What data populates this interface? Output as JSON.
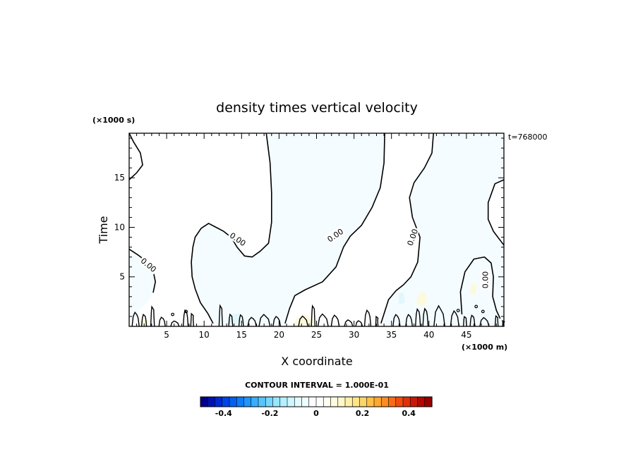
{
  "chart_data": {
    "type": "contour",
    "title": "density times vertical velocity",
    "xlabel": "X coordinate",
    "ylabel": "Time",
    "x_unit": "(×1000 m)",
    "y_unit": "(×1000 s)",
    "annotation": "t=768000",
    "xlim": [
      0,
      50
    ],
    "ylim": [
      0,
      19.5
    ],
    "x_ticks": [
      5,
      10,
      15,
      20,
      25,
      30,
      35,
      40,
      45
    ],
    "y_ticks": [
      5,
      10,
      15
    ],
    "contour_labels": [
      {
        "text": "0.00",
        "x": 2.6,
        "y": 6.2
      },
      {
        "text": "0.00",
        "x": 14.5,
        "y": 8.8
      },
      {
        "text": "0.00",
        "x": 27.5,
        "y": 9.2
      },
      {
        "text": "0.00",
        "x": 37.8,
        "y": 9.0
      },
      {
        "text": "0.00",
        "x": 47.5,
        "y": 4.7
      }
    ],
    "zero_contours": [
      {
        "name": "contour-left-top",
        "points": [
          [
            0,
            14.8
          ],
          [
            1,
            15.5
          ],
          [
            1.8,
            16.3
          ],
          [
            1.5,
            17.5
          ],
          [
            0.6,
            18.6
          ],
          [
            0,
            19.5
          ]
        ]
      },
      {
        "name": "contour-left-mid",
        "points": [
          [
            0,
            7.8
          ],
          [
            1.2,
            7.2
          ],
          [
            2.4,
            6.5
          ],
          [
            3.2,
            5.6
          ],
          [
            3.5,
            4.5
          ],
          [
            3.2,
            3.4
          ]
        ]
      },
      {
        "name": "contour-center-a",
        "points": [
          [
            11.2,
            0.3
          ],
          [
            10.5,
            1.3
          ],
          [
            9.5,
            2.4
          ],
          [
            8.8,
            3.8
          ],
          [
            8.4,
            5.0
          ],
          [
            8.3,
            6.5
          ],
          [
            8.5,
            8.0
          ],
          [
            8.8,
            9.0
          ],
          [
            9.6,
            9.9
          ],
          [
            10.6,
            10.4
          ],
          [
            11.6,
            10.0
          ],
          [
            12.6,
            9.6
          ],
          [
            13.6,
            9.0
          ],
          [
            14.4,
            8.0
          ],
          [
            15.4,
            7.1
          ],
          [
            16.4,
            7.0
          ],
          [
            17.5,
            7.6
          ],
          [
            18.6,
            8.4
          ],
          [
            19.0,
            10.5
          ],
          [
            19.0,
            13.5
          ],
          [
            18.8,
            16.5
          ],
          [
            18.3,
            19.5
          ]
        ]
      },
      {
        "name": "contour-center-b",
        "points": [
          [
            20.8,
            0.3
          ],
          [
            21.4,
            1.8
          ],
          [
            22.1,
            3.1
          ],
          [
            23.5,
            3.7
          ],
          [
            25.8,
            4.5
          ],
          [
            27.6,
            6.0
          ],
          [
            28.6,
            8.0
          ],
          [
            29.5,
            9.1
          ],
          [
            31.0,
            10.2
          ],
          [
            32.4,
            12.0
          ],
          [
            33.5,
            14.0
          ],
          [
            34.0,
            16.5
          ],
          [
            34.1,
            19.5
          ]
        ]
      },
      {
        "name": "contour-right-a",
        "points": [
          [
            33.6,
            0.3
          ],
          [
            34.6,
            2.7
          ],
          [
            35.6,
            3.6
          ],
          [
            36.6,
            4.2
          ],
          [
            37.6,
            5.0
          ],
          [
            38.5,
            6.5
          ],
          [
            38.8,
            9.0
          ],
          [
            37.8,
            11.0
          ],
          [
            37.4,
            13.0
          ],
          [
            38.0,
            14.5
          ],
          [
            39.4,
            16.0
          ],
          [
            40.4,
            17.5
          ],
          [
            40.6,
            19.5
          ]
        ]
      },
      {
        "name": "contour-right-b",
        "points": [
          [
            50,
            14.8
          ],
          [
            48.8,
            14.4
          ],
          [
            47.9,
            12.5
          ],
          [
            47.9,
            10.8
          ],
          [
            48.6,
            9.6
          ],
          [
            50,
            8.2
          ]
        ]
      },
      {
        "name": "contour-right-c",
        "points": [
          [
            44.4,
            1.2
          ],
          [
            44.2,
            3.5
          ],
          [
            44.8,
            5.5
          ],
          [
            46.0,
            6.8
          ],
          [
            47.4,
            7.0
          ],
          [
            48.3,
            6.4
          ],
          [
            48.6,
            5.0
          ],
          [
            48.5,
            3.0
          ],
          [
            49.0,
            1.6
          ],
          [
            49.5,
            0.8
          ]
        ]
      }
    ],
    "shaded_regions": [
      {
        "name": "region-left-low",
        "color": "#f4fcff",
        "points": [
          [
            0,
            0
          ],
          [
            0,
            7.8
          ],
          [
            1.2,
            7.2
          ],
          [
            2.4,
            6.5
          ],
          [
            3.2,
            5.6
          ],
          [
            3.5,
            4.5
          ],
          [
            3.2,
            3.4
          ],
          [
            2.4,
            2.4
          ],
          [
            1.3,
            1.6
          ],
          [
            0.6,
            0.6
          ]
        ]
      },
      {
        "name": "region-center",
        "color": "#f4fcff",
        "points": [
          [
            11.2,
            0
          ],
          [
            11.2,
            0.3
          ],
          [
            10.5,
            1.3
          ],
          [
            9.5,
            2.4
          ],
          [
            8.8,
            3.8
          ],
          [
            8.4,
            5.0
          ],
          [
            8.3,
            6.5
          ],
          [
            8.5,
            8.0
          ],
          [
            8.8,
            9.0
          ],
          [
            9.6,
            9.9
          ],
          [
            10.6,
            10.4
          ],
          [
            11.6,
            10.0
          ],
          [
            12.6,
            9.6
          ],
          [
            13.6,
            9.0
          ],
          [
            14.4,
            8.0
          ],
          [
            15.4,
            7.1
          ],
          [
            16.4,
            7.0
          ],
          [
            17.5,
            7.6
          ],
          [
            18.6,
            8.4
          ],
          [
            19.0,
            10.5
          ],
          [
            19.0,
            13.5
          ],
          [
            18.8,
            16.5
          ],
          [
            18.3,
            19.5
          ],
          [
            34.1,
            19.5
          ],
          [
            34.0,
            16.5
          ],
          [
            33.5,
            14.0
          ],
          [
            32.4,
            12.0
          ],
          [
            31.0,
            10.2
          ],
          [
            29.5,
            9.1
          ],
          [
            28.6,
            8.0
          ],
          [
            27.6,
            6.0
          ],
          [
            25.8,
            4.5
          ],
          [
            23.5,
            3.7
          ],
          [
            22.1,
            3.1
          ],
          [
            21.4,
            1.8
          ],
          [
            20.8,
            0.3
          ],
          [
            20.8,
            0
          ]
        ]
      },
      {
        "name": "region-right",
        "color": "#f4fcff",
        "points": [
          [
            33.6,
            0
          ],
          [
            33.6,
            0.3
          ],
          [
            34.6,
            2.7
          ],
          [
            35.6,
            3.6
          ],
          [
            36.6,
            4.2
          ],
          [
            37.6,
            5.0
          ],
          [
            38.5,
            6.5
          ],
          [
            38.8,
            9.0
          ],
          [
            37.8,
            11.0
          ],
          [
            37.4,
            13.0
          ],
          [
            38.0,
            14.5
          ],
          [
            39.4,
            16.0
          ],
          [
            40.4,
            17.5
          ],
          [
            40.6,
            19.5
          ],
          [
            50,
            19.5
          ],
          [
            50,
            14.8
          ],
          [
            48.8,
            14.4
          ],
          [
            47.9,
            12.5
          ],
          [
            47.9,
            10.8
          ],
          [
            48.6,
            9.6
          ],
          [
            50,
            8.2
          ],
          [
            50,
            0
          ]
        ]
      },
      {
        "name": "patch-yellow-1",
        "color": "#fdf9dc",
        "points": [
          [
            21.8,
            0
          ],
          [
            22.4,
            0.9
          ],
          [
            23.6,
            1.2
          ],
          [
            24.5,
            0.6
          ],
          [
            24.6,
            0
          ]
        ]
      },
      {
        "name": "patch-yellow-2",
        "color": "#fdf9dc",
        "points": [
          [
            38.3,
            2.3
          ],
          [
            38.6,
            3.2
          ],
          [
            39.4,
            3.6
          ],
          [
            39.8,
            2.6
          ],
          [
            39.2,
            2.0
          ]
        ]
      },
      {
        "name": "patch-yellow-3",
        "color": "#fdf9dc",
        "points": [
          [
            45.4,
            3.4
          ],
          [
            45.8,
            4.4
          ],
          [
            46.4,
            4.2
          ],
          [
            46.2,
            3.2
          ]
        ]
      },
      {
        "name": "patch-yellow-4",
        "color": "#fdf9dc",
        "points": [
          [
            1.4,
            0.2
          ],
          [
            1.8,
            0.8
          ],
          [
            2.6,
            0.6
          ],
          [
            2.4,
            0
          ]
        ]
      },
      {
        "name": "patch-blue-1",
        "color": "#e2f7fb",
        "points": [
          [
            36.0,
            2.2
          ],
          [
            36.0,
            3.4
          ],
          [
            36.6,
            3.4
          ],
          [
            36.8,
            2.4
          ]
        ]
      },
      {
        "name": "patch-blue-2",
        "color": "#e2f7fb",
        "points": [
          [
            13.0,
            0.2
          ],
          [
            13.6,
            1.2
          ],
          [
            14.8,
            1.3
          ],
          [
            15.4,
            0.4
          ]
        ]
      }
    ],
    "noise_contours_seed": 7,
    "colorbar": {
      "title": "CONTOUR INTERVAL = 1.000E-01",
      "range": [
        -0.5,
        0.5
      ],
      "tick_labels": [
        "-0.4",
        "-0.2",
        "0",
        "0.2",
        "0.4"
      ],
      "tick_values": [
        -0.4,
        -0.2,
        0,
        0.2,
        0.4
      ],
      "colors": [
        "#00008c",
        "#0012b4",
        "#0028d2",
        "#0044e6",
        "#0060f0",
        "#0c7cf8",
        "#1e96fc",
        "#38aeff",
        "#56c4ff",
        "#76d6ff",
        "#96e6ff",
        "#b4f0ff",
        "#cef6ff",
        "#e2fbff",
        "#f0fdff",
        "#ffffff",
        "#ffffff",
        "#fffff0",
        "#fffce0",
        "#fff8c8",
        "#fff0a8",
        "#ffe488",
        "#ffd468",
        "#ffc048",
        "#ffa830",
        "#ff8c20",
        "#fa6c14",
        "#f04c0c",
        "#e03008",
        "#c81804",
        "#b00800",
        "#960000"
      ]
    }
  }
}
